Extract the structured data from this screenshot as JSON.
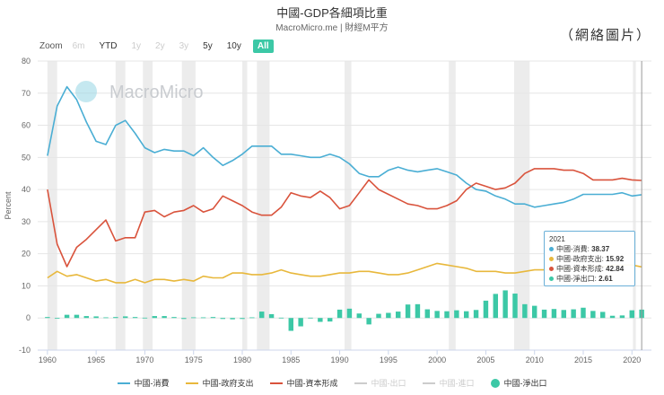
{
  "header": {
    "title": "中國-GDP各細項比重",
    "subtitle": "MacroMicro.me | 財經M平方",
    "note": "（網絡圖片）"
  },
  "zoom": {
    "label": "Zoom",
    "buttons": [
      {
        "label": "6m",
        "state": "disabled"
      },
      {
        "label": "YTD",
        "state": "on"
      },
      {
        "label": "1y",
        "state": "disabled"
      },
      {
        "label": "2y",
        "state": "disabled"
      },
      {
        "label": "3y",
        "state": "disabled"
      },
      {
        "label": "5y",
        "state": "on"
      },
      {
        "label": "10y",
        "state": "on"
      },
      {
        "label": "All",
        "state": "active"
      }
    ]
  },
  "watermark": "MacroMicro",
  "colors": {
    "consumption": "#4aaed4",
    "government": "#e8b83c",
    "capital": "#d9533c",
    "net_export": "#3cc8a6",
    "grid": "#e6e6e6",
    "recession": "#ececec"
  },
  "tooltip": {
    "year": "2021",
    "rows": [
      {
        "label": "中國-消費:",
        "value": "38.37",
        "color": "#4aaed4"
      },
      {
        "label": "中國-政府支出:",
        "value": "15.92",
        "color": "#e8b83c"
      },
      {
        "label": "中國-資本形成:",
        "value": "42.84",
        "color": "#d9533c"
      },
      {
        "label": "中國-淨出口:",
        "value": "2.61",
        "color": "#3cc8a6"
      }
    ]
  },
  "legend": [
    {
      "label": "中國-消費",
      "color": "#4aaed4",
      "kind": "line",
      "enabled": true
    },
    {
      "label": "中國-政府支出",
      "color": "#e8b83c",
      "kind": "line",
      "enabled": true
    },
    {
      "label": "中國-資本形成",
      "color": "#d9533c",
      "kind": "line",
      "enabled": true
    },
    {
      "label": "中國-出口",
      "color": "#cccccc",
      "kind": "line",
      "enabled": false
    },
    {
      "label": "中國-進口",
      "color": "#cccccc",
      "kind": "line",
      "enabled": false
    },
    {
      "label": "中國-淨出口",
      "color": "#3cc8a6",
      "kind": "dot",
      "enabled": true
    }
  ],
  "chart_data": {
    "type": "line",
    "title": "中國-GDP各細項比重",
    "ylabel": "Percent",
    "xlabel": "",
    "ylim": [
      -10,
      80
    ],
    "xlim": [
      1959,
      2022
    ],
    "yticks": [
      -10,
      0,
      10,
      20,
      30,
      40,
      50,
      60,
      70,
      80
    ],
    "xticks": [
      1960,
      1965,
      1970,
      1975,
      1980,
      1985,
      1990,
      1995,
      2000,
      2005,
      2010,
      2015,
      2020
    ],
    "x": [
      1960,
      1961,
      1962,
      1963,
      1964,
      1965,
      1966,
      1967,
      1968,
      1969,
      1970,
      1971,
      1972,
      1973,
      1974,
      1975,
      1976,
      1977,
      1978,
      1979,
      1980,
      1981,
      1982,
      1983,
      1984,
      1985,
      1986,
      1987,
      1988,
      1989,
      1990,
      1991,
      1992,
      1993,
      1994,
      1995,
      1996,
      1997,
      1998,
      1999,
      2000,
      2001,
      2002,
      2003,
      2004,
      2005,
      2006,
      2007,
      2008,
      2009,
      2010,
      2011,
      2012,
      2013,
      2014,
      2015,
      2016,
      2017,
      2018,
      2019,
      2020,
      2021
    ],
    "series": [
      {
        "name": "中國-消費",
        "type": "line",
        "color": "#4aaed4",
        "values": [
          50.5,
          66,
          72,
          68,
          61,
          55,
          54,
          60,
          61.5,
          57.5,
          53,
          51.5,
          52.5,
          52,
          52,
          50.5,
          53,
          50,
          47.5,
          49,
          51,
          53.5,
          53.5,
          53.5,
          51,
          51,
          50.5,
          50,
          50,
          51,
          50,
          48,
          45,
          44,
          44,
          46,
          47,
          46,
          45.5,
          46,
          46.5,
          45.5,
          44.5,
          42,
          40,
          39.5,
          38,
          37,
          35.5,
          35.5,
          34.5,
          35,
          35.5,
          36,
          37,
          38.5,
          38.5,
          38.5,
          38.5,
          39,
          38,
          38.37
        ]
      },
      {
        "name": "中國-政府支出",
        "type": "line",
        "color": "#e8b83c",
        "values": [
          12.5,
          14.5,
          13,
          13.5,
          12.5,
          11.5,
          12,
          11,
          11,
          12,
          11,
          12,
          12,
          11.5,
          12,
          11.5,
          13,
          12.5,
          12.5,
          14,
          14,
          13.5,
          13.5,
          14,
          15,
          14,
          13.5,
          13,
          13,
          13.5,
          14,
          14,
          14.5,
          14.5,
          14,
          13.5,
          13.5,
          14,
          15,
          16,
          17,
          16.5,
          16,
          15.5,
          14.5,
          14.5,
          14.5,
          14,
          14,
          14.5,
          15,
          15,
          15,
          15.5,
          15.5,
          16,
          16,
          16,
          16.5,
          16.5,
          16.5,
          15.92
        ]
      },
      {
        "name": "中國-資本形成",
        "type": "line",
        "color": "#d9533c",
        "values": [
          40,
          23,
          16,
          22,
          24.5,
          27.5,
          30.5,
          24,
          25,
          25,
          33,
          33.5,
          31.5,
          33,
          33.5,
          35,
          33,
          34,
          38,
          36.5,
          35,
          33,
          32,
          32,
          34.5,
          39,
          38,
          37.5,
          39.5,
          37.5,
          34,
          35,
          39,
          43,
          40,
          38.5,
          37,
          35.5,
          35,
          34,
          34,
          35,
          36.5,
          40,
          42,
          41,
          40,
          40.5,
          42,
          45,
          46.5,
          46.5,
          46.5,
          46,
          46,
          45,
          43,
          43,
          43,
          43.5,
          43,
          42.84
        ]
      },
      {
        "name": "中國-淨出口",
        "type": "bar",
        "color": "#3cc8a6",
        "values": [
          0.3,
          -0.2,
          1,
          1,
          0.6,
          0.5,
          0.2,
          0.3,
          0.5,
          0.3,
          0.1,
          0.6,
          0.6,
          0.3,
          -0.3,
          0.2,
          0.2,
          0.3,
          -0.3,
          -0.4,
          -0.3,
          0.2,
          2,
          1.2,
          0.1,
          -4,
          -2.6,
          0.1,
          -1.2,
          -1.1,
          2.6,
          2.9,
          1.4,
          -2,
          1.3,
          1.6,
          2,
          4.2,
          4.3,
          2.7,
          2.2,
          2.1,
          2.4,
          2.1,
          2.5,
          5.4,
          7.5,
          8.6,
          7.6,
          4.3,
          3.8,
          2.6,
          2.8,
          2.5,
          2.7,
          3.2,
          2.2,
          1.9,
          0.7,
          0.8,
          2.4,
          2.61
        ]
      }
    ],
    "recession_bands": [
      [
        1960,
        1961
      ],
      [
        1967,
        1968
      ],
      [
        1969.8,
        1970.8
      ],
      [
        1973.8,
        1975.2
      ],
      [
        1980,
        1980.5
      ],
      [
        1981.5,
        1982.8
      ],
      [
        1990.5,
        1991.2
      ],
      [
        2001.2,
        2001.9
      ],
      [
        2007.9,
        2009.5
      ],
      [
        2020.1,
        2020.4
      ]
    ],
    "tooltip_year": 2021
  }
}
